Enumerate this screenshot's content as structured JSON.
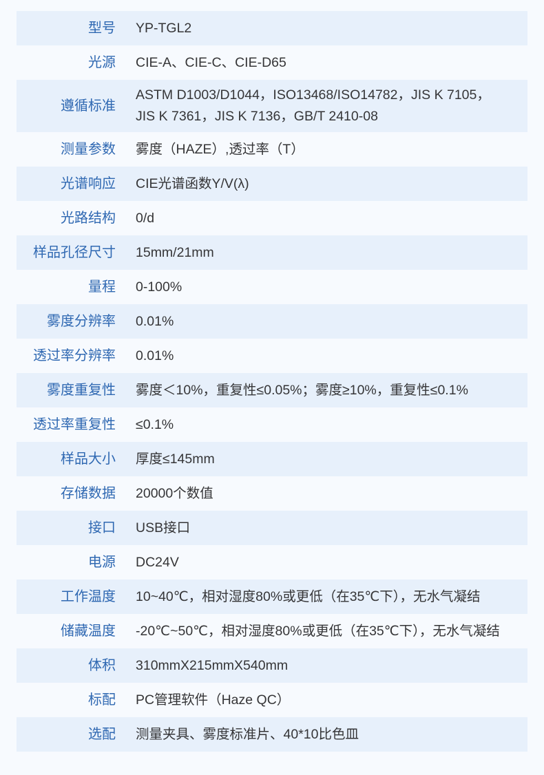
{
  "page": {
    "background_color": "#f7fafe",
    "row_alt_background": "#e7f0fb",
    "label_color": "#2f68b2",
    "value_color": "#353537"
  },
  "spec_table": {
    "rows": [
      {
        "label": "型号",
        "value": "YP-TGL2"
      },
      {
        "label": "光源",
        "value": "CIE-A、CIE-C、CIE-D65"
      },
      {
        "label": "遵循标准",
        "value": "ASTM D1003/D1044，ISO13468/ISO14782，JIS K 7105，\nJIS K 7361，JIS K 7136，GB/T 2410-08"
      },
      {
        "label": "测量参数",
        "value": "雾度（HAZE）,透过率（T）"
      },
      {
        "label": "光谱响应",
        "value": "CIE光谱函数Y/V(λ)"
      },
      {
        "label": "光路结构",
        "value": "0/d"
      },
      {
        "label": "样品孔径尺寸",
        "value": "15mm/21mm"
      },
      {
        "label": "量程",
        "value": "0-100%"
      },
      {
        "label": "雾度分辨率",
        "value": "0.01%"
      },
      {
        "label": "透过率分辨率",
        "value": "0.01%"
      },
      {
        "label": "雾度重复性",
        "value": "雾度＜10%，重复性≤0.05%；雾度≥10%，重复性≤0.1%"
      },
      {
        "label": "透过率重复性",
        "value": "≤0.1%"
      },
      {
        "label": "样品大小",
        "value": "厚度≤145mm"
      },
      {
        "label": "存储数据",
        "value": "20000个数值"
      },
      {
        "label": "接口",
        "value": "USB接口"
      },
      {
        "label": "电源",
        "value": "DC24V"
      },
      {
        "label": "工作温度",
        "value": "10~40℃，相对湿度80%或更低（在35℃下），无水气凝结"
      },
      {
        "label": "储藏温度",
        "value": "-20℃~50℃，相对湿度80%或更低（在35℃下），无水气凝结"
      },
      {
        "label": "体积",
        "value": "310mmX215mmX540mm"
      },
      {
        "label": "标配",
        "value": "PC管理软件（Haze QC）"
      },
      {
        "label": "选配",
        "value": "测量夹具、雾度标准片、40*10比色皿"
      }
    ]
  }
}
